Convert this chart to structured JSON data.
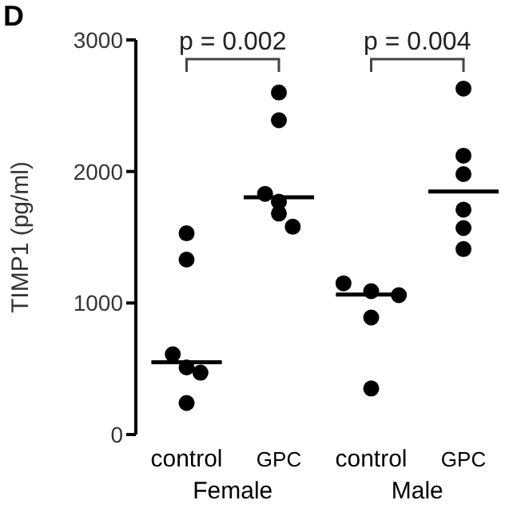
{
  "chart_data": {
    "type": "scatter",
    "ylabel": "TIMP1 (pg/ml)",
    "categories": [
      "control",
      "GPC",
      "control",
      "GPC"
    ],
    "ylim": [
      0,
      3000
    ],
    "yticks": [
      0,
      1000,
      2000,
      3000
    ],
    "grid": false,
    "legend": false,
    "marker": "circle",
    "annotations": [
      "D",
      "p = 0.002",
      "p = 0.004",
      "Female",
      "Male"
    ],
    "series": [
      {
        "color": "#000000",
        "values": [
          1530,
          2600,
          1150,
          2630
        ]
      },
      {
        "color": "#000000",
        "values": [
          1330,
          2390,
          1090,
          2120
        ]
      },
      {
        "color": "#000000",
        "values": [
          610,
          1830,
          1060,
          1980
        ]
      },
      {
        "color": "#000000",
        "values": [
          510,
          1770,
          890,
          1710
        ]
      },
      {
        "color": "#000000",
        "values": [
          470,
          1680,
          350,
          1570
        ]
      },
      {
        "color": "#000000",
        "values": [
          240,
          1580,
          null,
          1410
        ]
      },
      {
        "type": "box",
        "color": "#000000",
        "boxes": [
          {
            "low": 550,
            "q1": 550,
            "median": 550,
            "q3": 550,
            "high": 550
          },
          {
            "low": 1803,
            "q1": 1803,
            "median": 1803,
            "q3": 1803,
            "high": 1803
          },
          {
            "low": 1064,
            "q1": 1064,
            "median": 1064,
            "q3": 1064,
            "high": 1064
          },
          {
            "low": 1847,
            "q1": 1847,
            "median": 1847,
            "q3": 1847,
            "high": 1847
          }
        ]
      }
    ]
  }
}
